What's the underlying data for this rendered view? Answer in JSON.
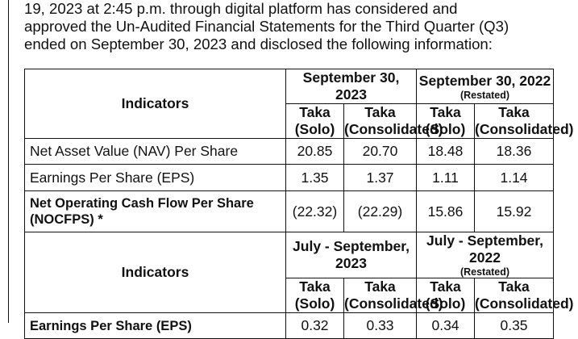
{
  "intro_lines": [
    "19, 2023 at 2:45 p.m. through digital platform has considered and",
    "approved the Un-Audited Financial Statements for the Third Quarter (Q3)",
    "ended on September 30, 2023 and disclosed the following information:"
  ],
  "section1": {
    "indicators_label": "Indicators",
    "period_a": {
      "title": "September 30, 2023",
      "note": ""
    },
    "period_b": {
      "title": "September 30, 2022",
      "note": "(Restated)"
    },
    "units": [
      {
        "line1": "Taka",
        "line2": "(Solo)"
      },
      {
        "line1": "Taka",
        "line2": "(Consolidated)"
      },
      {
        "line1": "Taka",
        "line2": "(Solo)"
      },
      {
        "line1": "Taka",
        "line2": "(Consolidated)"
      }
    ],
    "rows": [
      {
        "label": "Net Asset Value (NAV) Per Share",
        "values": [
          "20.85",
          "20.70",
          "18.48",
          "18.36"
        ]
      },
      {
        "label": "Earnings Per Share (EPS)",
        "values": [
          "1.35",
          "1.37",
          "1.11",
          "1.14"
        ]
      },
      {
        "label": "Net Operating Cash Flow Per Share (NOCFPS) *",
        "values": [
          "(22.32)",
          "(22.29)",
          "15.86",
          "15.92"
        ]
      }
    ]
  },
  "section2": {
    "indicators_label": "Indicators",
    "period_a": {
      "title": "July - September, 2023",
      "note": ""
    },
    "period_b": {
      "title": "July - September, 2022",
      "note": "(Restated)"
    },
    "units": [
      {
        "line1": "Taka",
        "line2": "(Solo)"
      },
      {
        "line1": "Taka",
        "line2": "(Consolidated)"
      },
      {
        "line1": "Taka",
        "line2": "(Solo)"
      },
      {
        "line1": "Taka",
        "line2": "(Consolidated)"
      }
    ],
    "rows": [
      {
        "label": "Earnings Per Share (EPS)",
        "values": [
          "0.32",
          "0.33",
          "0.34",
          "0.35"
        ]
      }
    ]
  }
}
